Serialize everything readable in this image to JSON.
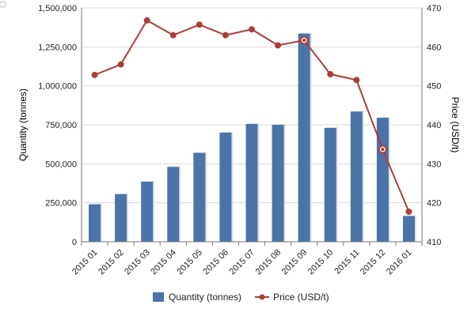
{
  "chart_data": {
    "type": "bar+line",
    "categories": [
      "2015 01",
      "2015 02",
      "2015 03",
      "2015 04",
      "2015 05",
      "2015 06",
      "2015 07",
      "2015 08",
      "2015 09",
      "2015 10",
      "2015 11",
      "2015 12",
      "2016 01"
    ],
    "series": [
      {
        "name": "Quantity (tonnes)",
        "type": "bar",
        "axis": "left",
        "color": "#4a74a8",
        "values": [
          240000,
          305000,
          385000,
          480000,
          570000,
          700000,
          755000,
          750000,
          1335000,
          730000,
          835000,
          795000,
          165000
        ]
      },
      {
        "name": "Price (USD/t)",
        "type": "line",
        "axis": "right",
        "color": "#aa3e3a",
        "values": [
          452.8,
          455.5,
          466.8,
          463.0,
          465.7,
          463.0,
          464.5,
          460.4,
          461.7,
          453.0,
          451.5,
          433.7,
          417.7
        ]
      }
    ],
    "y_left": {
      "label": "Quantity (tonnes)",
      "min": 0,
      "max": 1500000,
      "ticks": [
        0,
        250000,
        500000,
        750000,
        1000000,
        1250000,
        1500000
      ],
      "tick_labels": [
        "0",
        "250,000",
        "500,000",
        "750,000",
        "1,000,000",
        "1,250,000",
        "1,500,000"
      ]
    },
    "y_right": {
      "label": "Price (USD/t)",
      "min": 410,
      "max": 470,
      "ticks": [
        410,
        420,
        430,
        440,
        450,
        460,
        470
      ],
      "tick_labels": [
        "410",
        "420",
        "430",
        "440",
        "450",
        "460",
        "470"
      ]
    },
    "grid": "horizontal",
    "legend": "bottom-center"
  }
}
